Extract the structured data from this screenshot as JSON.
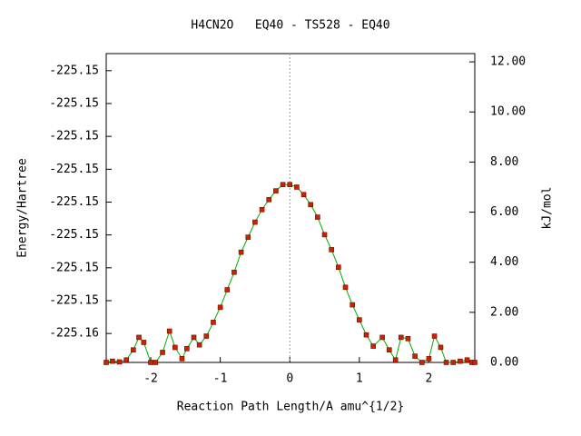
{
  "chart_data": {
    "type": "line",
    "title": "H4CN2O   EQ40 - TS528 - EQ40",
    "x_label": "Reaction Path Length/A amu^{1/2}",
    "y_label": "Energy/Hartree",
    "y2_label": "kJ/mol",
    "xlim": [
      -2.64,
      2.66
    ],
    "xticks": [
      -2,
      -1,
      0,
      1,
      2
    ],
    "ylim": [
      -225.15564,
      -225.15094
    ],
    "yticks": [
      {
        "value": -225.1552,
        "label": "-225.16"
      },
      {
        "value": -225.1547,
        "label": "-225.15"
      },
      {
        "value": -225.1542,
        "label": "-225.15"
      },
      {
        "value": -225.1537,
        "label": "-225.15"
      },
      {
        "value": -225.1532,
        "label": "-225.15"
      },
      {
        "value": -225.1527,
        "label": "-225.15"
      },
      {
        "value": -225.1522,
        "label": "-225.15"
      },
      {
        "value": -225.1517,
        "label": "-225.15"
      },
      {
        "value": -225.1512,
        "label": "-225.15"
      }
    ],
    "y2lim": [
      0,
      12.33
    ],
    "y2ticks": [
      {
        "value": 0,
        "label": "0.00"
      },
      {
        "value": 2,
        "label": "2.00"
      },
      {
        "value": 4,
        "label": "4.00"
      },
      {
        "value": 6,
        "label": "6.00"
      },
      {
        "value": 8,
        "label": "8.00"
      },
      {
        "value": 10,
        "label": "10.00"
      },
      {
        "value": 12,
        "label": "12.00"
      }
    ],
    "vline": 0,
    "x": [
      -2.64,
      -2.55,
      -2.45,
      -2.35,
      -2.25,
      -2.17,
      -2.1,
      -2.0,
      -1.93,
      -1.83,
      -1.73,
      -1.65,
      -1.55,
      -1.48,
      -1.38,
      -1.3,
      -1.2,
      -1.1,
      -1.0,
      -0.9,
      -0.8,
      -0.7,
      -0.6,
      -0.5,
      -0.4,
      -0.3,
      -0.2,
      -0.1,
      0,
      0.1,
      0.2,
      0.3,
      0.4,
      0.5,
      0.6,
      0.7,
      0.8,
      0.9,
      1.0,
      1.1,
      1.2,
      1.33,
      1.43,
      1.52,
      1.6,
      1.7,
      1.8,
      1.9,
      2.0,
      2.08,
      2.17,
      2.25,
      2.35,
      2.45,
      2.55,
      2.62,
      2.66
    ],
    "series": [
      {
        "name": "kJ/mol",
        "axis": "y2",
        "color": "#00aa00",
        "marker_color": "#cc2200",
        "values": [
          0,
          0.05,
          0.02,
          0.1,
          0.5,
          1.0,
          0.8,
          0,
          0,
          0.4,
          1.25,
          0.6,
          0.15,
          0.55,
          1.0,
          0.7,
          1.05,
          1.6,
          2.2,
          2.9,
          3.6,
          4.4,
          5.0,
          5.6,
          6.1,
          6.5,
          6.85,
          7.1,
          7.1,
          7.0,
          6.7,
          6.3,
          5.8,
          5.1,
          4.5,
          3.8,
          3.0,
          2.3,
          1.7,
          1.1,
          0.65,
          1.0,
          0.5,
          0.1,
          1.0,
          0.95,
          0.25,
          0,
          0.15,
          1.05,
          0.6,
          0,
          0,
          0.05,
          0.1,
          0,
          0
        ]
      }
    ]
  }
}
